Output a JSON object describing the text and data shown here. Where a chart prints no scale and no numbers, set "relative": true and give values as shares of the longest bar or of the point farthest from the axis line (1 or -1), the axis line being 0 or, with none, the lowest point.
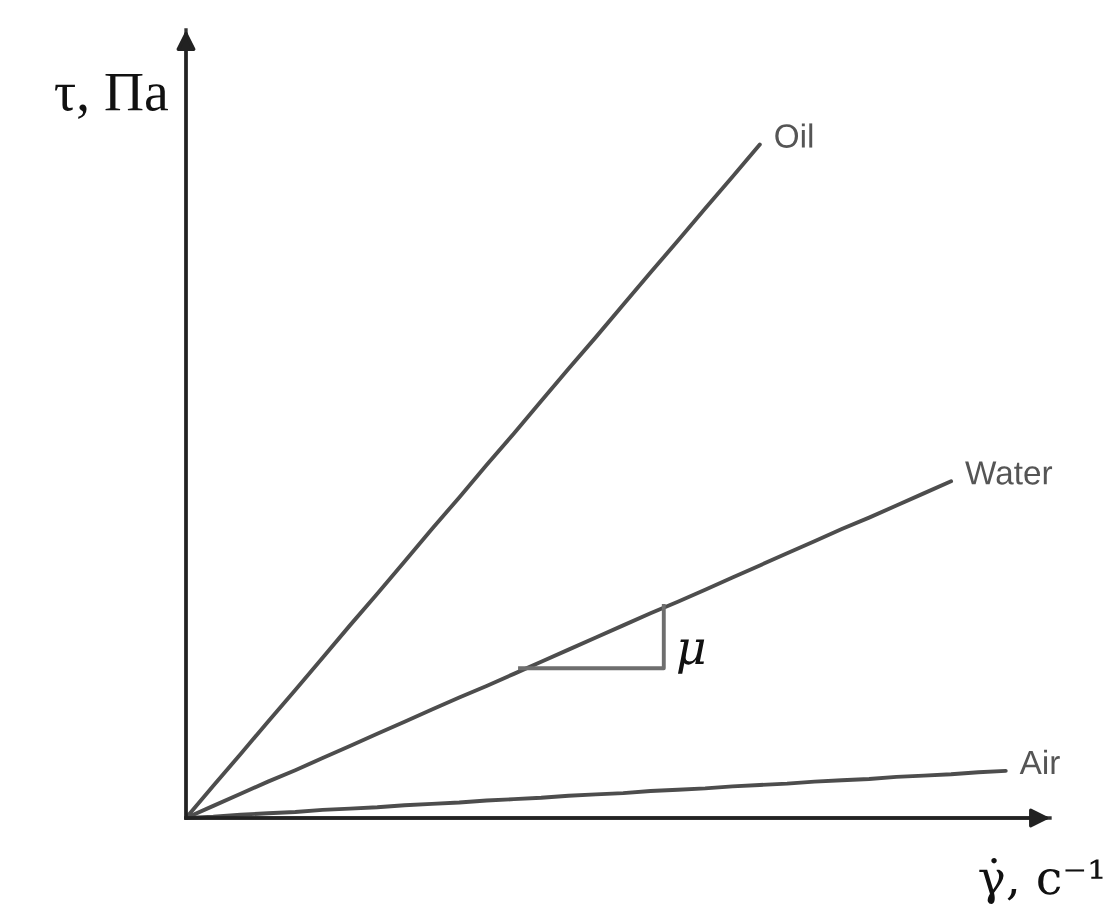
{
  "chart_data": {
    "type": "line",
    "relative": true,
    "xlabel": "γ̇, с⁻¹",
    "ylabel": "τ, Па",
    "line_style": "solid",
    "categories": [
      null,
      null,
      null,
      null,
      null,
      null,
      null,
      null,
      null,
      null,
      null,
      null,
      null,
      null,
      null,
      null,
      null,
      null,
      null,
      null,
      null,
      null,
      null,
      null,
      null,
      null,
      null,
      null,
      null,
      null,
      null
    ],
    "series": [
      {
        "name": "Oil",
        "color": "#4d4d4d",
        "values": [
          0,
          0.048,
          0.095,
          0.143,
          0.19,
          0.238,
          0.286,
          0.333,
          0.381,
          0.429,
          0.476,
          0.524,
          0.571,
          0.619,
          0.667,
          0.714,
          0.762,
          0.81,
          0.857,
          0.905,
          0.952,
          1,
          null,
          null,
          null,
          null,
          null,
          null,
          null,
          null,
          null
        ]
      },
      {
        "name": "Water",
        "color": "#4d4d4d",
        "values": [
          0,
          0.018,
          0.036,
          0.054,
          0.071,
          0.089,
          0.107,
          0.125,
          0.143,
          0.161,
          0.179,
          0.196,
          0.214,
          0.232,
          0.25,
          0.268,
          0.286,
          0.304,
          0.321,
          0.339,
          0.357,
          0.375,
          0.393,
          0.411,
          0.429,
          0.446,
          0.464,
          0.482,
          0.5,
          null,
          null
        ]
      },
      {
        "name": "Air",
        "color": "#4d4d4d",
        "values": [
          0,
          0.002,
          0.005,
          0.007,
          0.009,
          0.012,
          0.014,
          0.016,
          0.019,
          0.021,
          0.023,
          0.026,
          0.028,
          0.03,
          0.033,
          0.035,
          0.037,
          0.04,
          0.042,
          0.044,
          0.047,
          0.049,
          0.051,
          0.054,
          0.056,
          0.058,
          0.061,
          0.063,
          0.065,
          0.068,
          0.07
        ]
      }
    ],
    "annotations": [
      "μ"
    ]
  }
}
